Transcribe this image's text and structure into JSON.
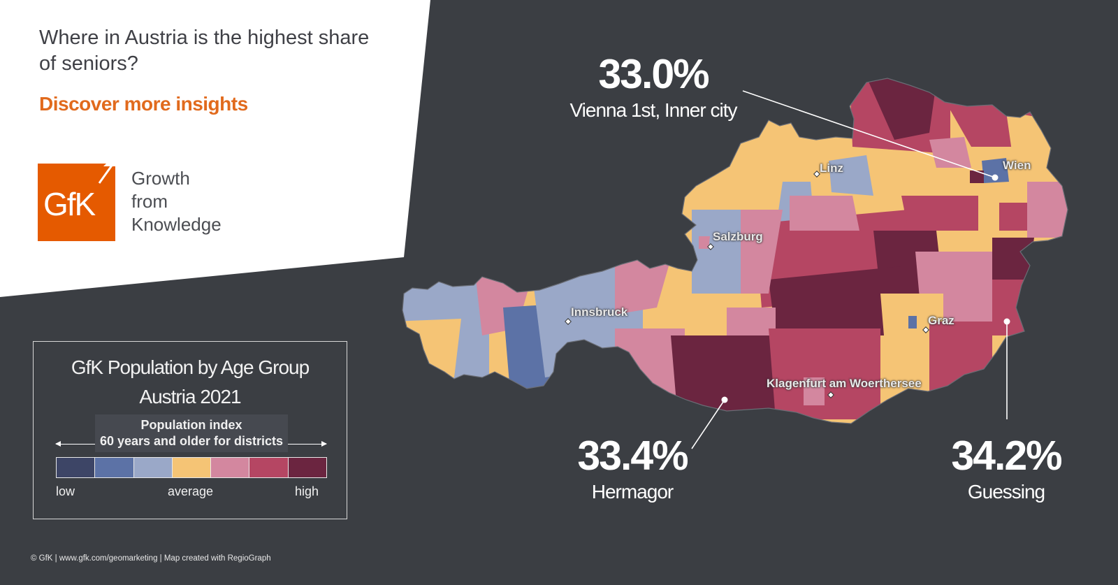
{
  "header": {
    "question": "Where in Austria is the highest share of seniors?",
    "cta_label": "Discover more insights"
  },
  "logo": {
    "mark": "GfK",
    "tagline": [
      "Growth",
      "from",
      "Knowledge"
    ],
    "color": "#e55a00"
  },
  "legend": {
    "title_lines": [
      "GfK Population by Age Group",
      "Austria 2021"
    ],
    "subtitle_lines": [
      "Population index",
      "60 years and older for districts"
    ],
    "colors": [
      "#3d4566",
      "#5c72a6",
      "#9aa8c8",
      "#f5c475",
      "#d3879f",
      "#b54663",
      "#6b2540"
    ],
    "low_label": "low",
    "mid_label": "average",
    "high_label": "high"
  },
  "map": {
    "cities": [
      {
        "name": "Linz"
      },
      {
        "name": "Wien"
      },
      {
        "name": "Salzburg"
      },
      {
        "name": "Innsbruck"
      },
      {
        "name": "Graz"
      },
      {
        "name": "Klagenfurt am Woerthersee"
      }
    ],
    "callouts": [
      {
        "value": "33.0%",
        "label": "Vienna  1st, Inner city"
      },
      {
        "value": "33.4%",
        "label": "Hermagor"
      },
      {
        "value": "34.2%",
        "label": "Guessing"
      }
    ]
  },
  "footer": {
    "credit": "© GfK | www.gfk.com/geomarketing  | Map created  with RegioGraph"
  }
}
